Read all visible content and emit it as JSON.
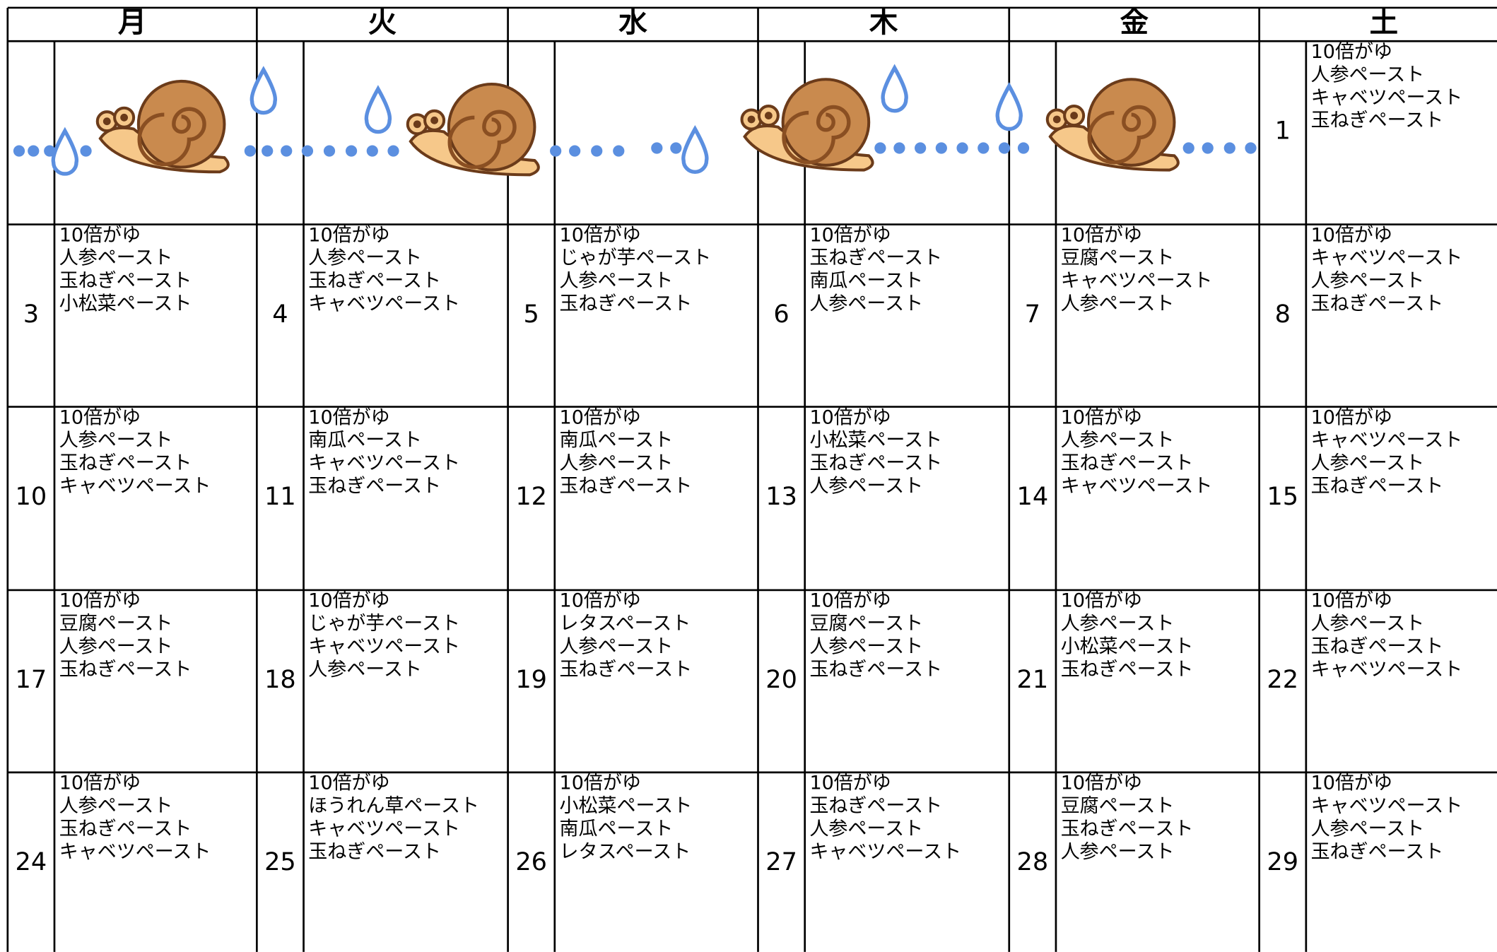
{
  "header": {
    "days": [
      "月",
      "火",
      "水",
      "木",
      "金",
      "土"
    ]
  },
  "weeks": [
    [
      null,
      null,
      null,
      null,
      null,
      {
        "day": 1,
        "items": [
          "10倍がゆ",
          "人参ペースト",
          "キャベツペースト",
          "玉ねぎペースト"
        ]
      }
    ],
    [
      {
        "day": 3,
        "items": [
          "10倍がゆ",
          "人参ペースト",
          "玉ねぎペースト",
          "小松菜ペースト"
        ]
      },
      {
        "day": 4,
        "items": [
          "10倍がゆ",
          "人参ペースト",
          "玉ねぎペースト",
          "キャベツペースト"
        ]
      },
      {
        "day": 5,
        "items": [
          "10倍がゆ",
          "じゃが芋ペースト",
          "人参ペースト",
          "玉ねぎペースト"
        ]
      },
      {
        "day": 6,
        "items": [
          "10倍がゆ",
          "玉ねぎペースト",
          "南瓜ペースト",
          "人参ペースト"
        ]
      },
      {
        "day": 7,
        "items": [
          "10倍がゆ",
          "豆腐ペースト",
          "キャベツペースト",
          "人参ペースト"
        ]
      },
      {
        "day": 8,
        "items": [
          "10倍がゆ",
          "キャベツペースト",
          "人参ペースト",
          "玉ねぎペースト"
        ]
      }
    ],
    [
      {
        "day": 10,
        "items": [
          "10倍がゆ",
          "人参ペースト",
          "玉ねぎペースト",
          "キャベツペースト"
        ]
      },
      {
        "day": 11,
        "items": [
          "10倍がゆ",
          "南瓜ペースト",
          "キャベツペースト",
          "玉ねぎペースト"
        ]
      },
      {
        "day": 12,
        "items": [
          "10倍がゆ",
          "南瓜ペースト",
          "人参ペースト",
          "玉ねぎペースト"
        ]
      },
      {
        "day": 13,
        "items": [
          "10倍がゆ",
          "小松菜ペースト",
          "玉ねぎペースト",
          "人参ペースト"
        ]
      },
      {
        "day": 14,
        "items": [
          "10倍がゆ",
          "人参ペースト",
          "玉ねぎペースト",
          "キャベツペースト"
        ]
      },
      {
        "day": 15,
        "items": [
          "10倍がゆ",
          "キャベツペースト",
          "人参ペースト",
          "玉ねぎペースト"
        ]
      }
    ],
    [
      {
        "day": 17,
        "items": [
          "10倍がゆ",
          "豆腐ペースト",
          "人参ペースト",
          "玉ねぎペースト"
        ]
      },
      {
        "day": 18,
        "items": [
          "10倍がゆ",
          "じゃが芋ペースト",
          "キャベツペースト",
          "人参ペースト"
        ]
      },
      {
        "day": 19,
        "items": [
          "10倍がゆ",
          "レタスペースト",
          "人参ペースト",
          "玉ねぎペースト"
        ]
      },
      {
        "day": 20,
        "items": [
          "10倍がゆ",
          "豆腐ペースト",
          "人参ペースト",
          "玉ねぎペースト"
        ]
      },
      {
        "day": 21,
        "items": [
          "10倍がゆ",
          "人参ペースト",
          "小松菜ペースト",
          "玉ねぎペースト"
        ]
      },
      {
        "day": 22,
        "items": [
          "10倍がゆ",
          "人参ペースト",
          "玉ねぎペースト",
          "キャベツペースト"
        ]
      }
    ],
    [
      {
        "day": 24,
        "items": [
          "10倍がゆ",
          "人参ペースト",
          "玉ねぎペースト",
          "キャベツペースト"
        ]
      },
      {
        "day": 25,
        "items": [
          "10倍がゆ",
          "ほうれん草ペースト",
          "キャベツペースト",
          "玉ねぎペースト"
        ]
      },
      {
        "day": 26,
        "items": [
          "10倍がゆ",
          "小松菜ペースト",
          "南瓜ペースト",
          "レタスペースト"
        ]
      },
      {
        "day": 27,
        "items": [
          "10倍がゆ",
          "玉ねぎペースト",
          "人参ペースト",
          "キャベツペースト"
        ]
      },
      {
        "day": 28,
        "items": [
          "10倍がゆ",
          "豆腐ペースト",
          "玉ねぎペースト",
          "人参ペースト"
        ]
      },
      {
        "day": 29,
        "items": [
          "10倍がゆ",
          "キャベツペースト",
          "人参ペースト",
          "玉ねぎペースト"
        ]
      }
    ]
  ]
}
